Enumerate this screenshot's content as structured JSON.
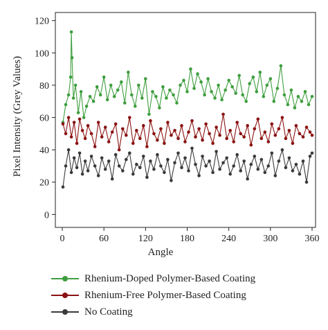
{
  "chart_data": {
    "type": "line",
    "title": "",
    "xlabel": "Angle",
    "ylabel": "Pixel Intensity (Grey Values)",
    "xlim": [
      -10,
      365
    ],
    "ylim": [
      -8,
      125
    ],
    "xticks": [
      0,
      60,
      120,
      180,
      240,
      300,
      360
    ],
    "yticks": [
      0,
      20,
      40,
      60,
      80,
      100,
      120
    ],
    "xtick_labels": [
      "0",
      "60",
      "120",
      "180",
      "240",
      "300",
      "360"
    ],
    "ytick_labels": [
      "0",
      "20",
      "40",
      "60",
      "80",
      "100",
      "120"
    ],
    "grid": false,
    "legend_position": "bottom",
    "series": [
      {
        "name": "Rhenium-Doped Polymer-Based Coating",
        "color": "#3e9e3e",
        "x": [
          1,
          5,
          9,
          12,
          13,
          14,
          16,
          19,
          23,
          27,
          31,
          35,
          40,
          45,
          50,
          55,
          60,
          65,
          70,
          75,
          80,
          85,
          90,
          95,
          100,
          105,
          110,
          115,
          120,
          125,
          130,
          135,
          140,
          145,
          150,
          155,
          160,
          165,
          170,
          175,
          180,
          185,
          190,
          195,
          200,
          205,
          210,
          215,
          220,
          225,
          230,
          235,
          240,
          245,
          250,
          255,
          260,
          265,
          270,
          275,
          280,
          285,
          290,
          295,
          300,
          305,
          310,
          315,
          320,
          325,
          330,
          335,
          340,
          345,
          350,
          355,
          360
        ],
        "values": [
          57,
          68,
          74,
          85,
          113,
          97,
          72,
          80,
          63,
          76,
          60,
          67,
          73,
          70,
          79,
          74,
          85,
          71,
          80,
          73,
          77,
          82,
          69,
          88,
          74,
          67,
          80,
          72,
          84,
          62,
          76,
          73,
          66,
          79,
          72,
          77,
          74,
          69,
          80,
          83,
          76,
          90,
          78,
          87,
          82,
          74,
          84,
          76,
          72,
          80,
          71,
          77,
          83,
          79,
          75,
          86,
          74,
          70,
          81,
          85,
          76,
          88,
          73,
          80,
          84,
          70,
          78,
          92,
          74,
          68,
          77,
          66,
          73,
          70,
          76,
          68,
          73
        ]
      },
      {
        "name": "Rhenium-Free Polymer-Based Coating",
        "color": "#8b1212",
        "x": [
          1,
          5,
          9,
          13,
          17,
          21,
          25,
          29,
          33,
          37,
          42,
          47,
          52,
          57,
          62,
          67,
          72,
          77,
          82,
          87,
          92,
          97,
          102,
          107,
          112,
          117,
          122,
          127,
          132,
          137,
          142,
          147,
          152,
          157,
          162,
          167,
          172,
          177,
          182,
          187,
          192,
          197,
          202,
          207,
          212,
          217,
          222,
          227,
          232,
          237,
          242,
          247,
          252,
          257,
          262,
          267,
          272,
          277,
          282,
          287,
          292,
          297,
          302,
          307,
          312,
          317,
          322,
          327,
          332,
          337,
          342,
          347,
          352,
          357,
          360
        ],
        "values": [
          56,
          50,
          60,
          48,
          57,
          44,
          59,
          52,
          47,
          55,
          50,
          42,
          57,
          48,
          54,
          45,
          51,
          56,
          40,
          53,
          49,
          60,
          44,
          52,
          47,
          55,
          42,
          58,
          50,
          46,
          53,
          44,
          57,
          49,
          52,
          47,
          55,
          45,
          51,
          58,
          48,
          53,
          46,
          56,
          50,
          44,
          54,
          49,
          62,
          47,
          52,
          45,
          57,
          50,
          48,
          55,
          43,
          53,
          59,
          47,
          51,
          45,
          56,
          49,
          53,
          60,
          47,
          52,
          44,
          55,
          50,
          48,
          54,
          51,
          49
        ]
      },
      {
        "name": "No Coating",
        "color": "#3a3a3a",
        "x": [
          1,
          5,
          9,
          13,
          17,
          21,
          25,
          29,
          33,
          37,
          42,
          47,
          52,
          57,
          62,
          67,
          72,
          77,
          82,
          87,
          92,
          97,
          102,
          107,
          112,
          117,
          122,
          127,
          132,
          137,
          142,
          147,
          152,
          157,
          162,
          167,
          172,
          177,
          182,
          187,
          192,
          197,
          202,
          207,
          212,
          217,
          222,
          227,
          232,
          237,
          242,
          247,
          252,
          257,
          262,
          267,
          272,
          277,
          282,
          287,
          292,
          297,
          302,
          307,
          312,
          317,
          322,
          327,
          332,
          337,
          342,
          347,
          352,
          357,
          360
        ],
        "values": [
          17,
          30,
          40,
          26,
          35,
          29,
          38,
          25,
          33,
          27,
          36,
          30,
          24,
          35,
          28,
          33,
          22,
          37,
          30,
          27,
          34,
          38,
          25,
          31,
          29,
          36,
          23,
          33,
          28,
          37,
          30,
          26,
          34,
          21,
          32,
          38,
          29,
          35,
          27,
          41,
          31,
          24,
          36,
          30,
          33,
          26,
          39,
          28,
          32,
          35,
          25,
          30,
          37,
          27,
          33,
          22,
          31,
          36,
          28,
          34,
          26,
          30,
          38,
          24,
          33,
          40,
          29,
          35,
          27,
          31,
          25,
          33,
          20,
          36,
          38
        ]
      }
    ]
  }
}
